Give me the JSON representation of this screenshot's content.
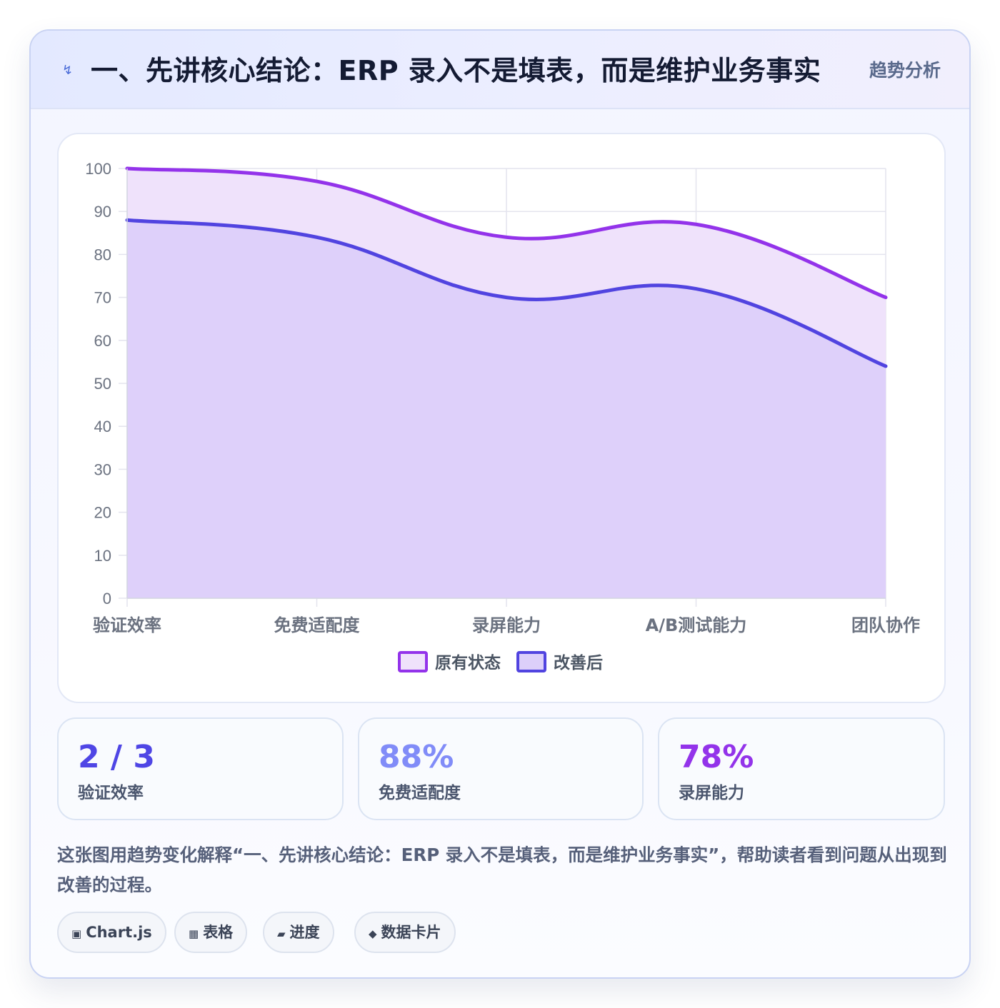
{
  "header": {
    "title": "一、先讲核心结论：ERP 录入不是填表，而是维护业务事实",
    "badge": "趋势分析",
    "icon": "lightning-icon"
  },
  "chart_data": {
    "type": "area",
    "categories": [
      "验证效率",
      "免费适配度",
      "录屏能力",
      "A/B测试能力",
      "团队协作"
    ],
    "series": [
      {
        "name": "原有状态",
        "values": [
          100,
          97,
          84,
          87,
          70
        ],
        "color": "#9333ea",
        "fill": "#efe2fb"
      },
      {
        "name": "改善后",
        "values": [
          88,
          84,
          70,
          72,
          54
        ],
        "color": "#5144e0",
        "fill": "#dccffa"
      }
    ],
    "ylim": [
      0,
      100
    ],
    "yticks": [
      "0",
      "10",
      "20",
      "30",
      "40",
      "50",
      "60",
      "70",
      "80",
      "90",
      "100"
    ],
    "grid": true,
    "legend": "bottom",
    "curve": "smooth"
  },
  "stats": [
    {
      "value": "2 / 3",
      "label": "验证效率",
      "color": "#4f46e5"
    },
    {
      "value": "88%",
      "label": "免费适配度",
      "color": "#818cf8"
    },
    {
      "value": "78%",
      "label": "录屏能力",
      "color": "#9333ea"
    }
  ],
  "caption": "这张图用趋势变化解释“一、先讲核心结论：ERP 录入不是填表，而是维护业务事实”，帮助读者看到问题从出现到改善的过程。",
  "tags": [
    {
      "icon": "▣",
      "icon_name": "chart-icon",
      "label": "Chart.js"
    },
    {
      "icon": "▦",
      "icon_name": "table-icon",
      "label": "表格"
    },
    {
      "icon": "▰",
      "icon_name": "progress-icon",
      "label": "进度"
    },
    {
      "icon": "◆",
      "icon_name": "data-card-icon",
      "label": "数据卡片"
    }
  ]
}
